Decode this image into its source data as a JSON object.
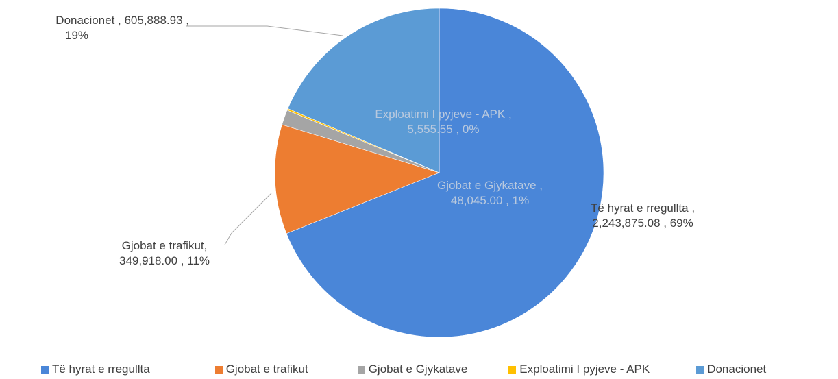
{
  "chart_data": {
    "type": "pie",
    "title": "",
    "slices": [
      {
        "name": "Të hyrat e rregullta",
        "value": 2243875.08,
        "value_label": "2,243,875.08",
        "percent_label": "69%",
        "color": "#4a86d8"
      },
      {
        "name": "Gjobat e trafikut",
        "value": 349918.0,
        "value_label": "349,918.00",
        "percent_label": "11%",
        "color": "#ed7d31"
      },
      {
        "name": "Gjobat e Gjykatave",
        "value": 48045.0,
        "value_label": "48,045.00",
        "percent_label": "1%",
        "color": "#a5a5a5"
      },
      {
        "name": "Exploatimi I pyjeve - APK",
        "value": 5555.55,
        "value_label": "5,555.55",
        "percent_label": "0%",
        "color": "#ffc000"
      },
      {
        "name": "Donacionet",
        "value": 605888.93,
        "value_label": "605,888.93",
        "percent_label": "19%",
        "color": "#5b9bd5"
      }
    ],
    "labels": {
      "regular": {
        "line1": "Të hyrat e rregullta ,",
        "line2": "2,243,875.08 , 69%"
      },
      "traffic": {
        "line1": "Gjobat e trafikut,",
        "line2": "349,918.00 , 11%"
      },
      "courts": {
        "line1": "Gjobat e Gjykatave ,",
        "line2": "48,045.00 , 1%"
      },
      "forest": {
        "line1": "Exploatimi I pyjeve - APK ,",
        "line2": "5,555.55 , 0%"
      },
      "donations": {
        "line1": "Donacionet , 605,888.93 ,",
        "line2": "19%"
      }
    },
    "legend": {
      "position": "bottom",
      "entries": [
        {
          "name": "Të hyrat e rregullta",
          "color": "#4a86d8"
        },
        {
          "name": "Gjobat e trafikut",
          "color": "#ed7d31"
        },
        {
          "name": "Gjobat e Gjykatave",
          "color": "#a5a5a5"
        },
        {
          "name": "Exploatimi I pyjeve - APK",
          "color": "#ffc000"
        },
        {
          "name": "Donacionet",
          "color": "#5b9bd5"
        }
      ]
    }
  }
}
